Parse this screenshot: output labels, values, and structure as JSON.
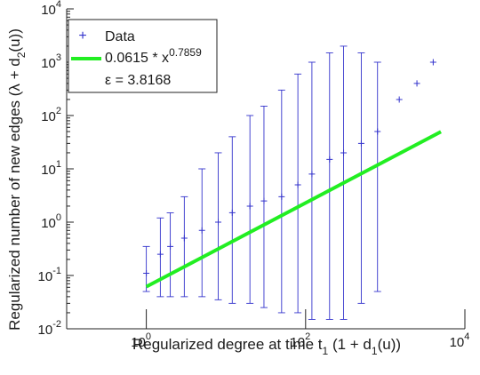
{
  "chart_data": {
    "type": "scatter",
    "xscale": "log",
    "yscale": "log",
    "xlim": [
      0.1,
      10000
    ],
    "ylim": [
      0.01,
      10000
    ],
    "x_ticks": [
      {
        "base": "10",
        "exp": "0"
      },
      {
        "base": "10",
        "exp": "2"
      },
      {
        "base": "10",
        "exp": "4"
      }
    ],
    "y_ticks": [
      {
        "base": "10",
        "exp": "-2"
      },
      {
        "base": "10",
        "exp": "-1"
      },
      {
        "base": "10",
        "exp": "0"
      },
      {
        "base": "10",
        "exp": "1"
      },
      {
        "base": "10",
        "exp": "2"
      },
      {
        "base": "10",
        "exp": "3"
      },
      {
        "base": "10",
        "exp": "4"
      }
    ],
    "xlabel": {
      "text": "Regularized degree at time t",
      "sub1": "1",
      "mid": " (1 + d",
      "sub2": "1",
      "end": "(u))"
    },
    "ylabel": {
      "text": "Regularized number of new edges (λ + d",
      "sub": "2",
      "end": "(u))"
    },
    "colors": {
      "data": "#3333cc",
      "fit": "#22ee22",
      "axis": "#222222"
    },
    "series": [
      {
        "name": "Data",
        "marker": "+",
        "description_points": [
          {
            "x": 1,
            "y": 0.11,
            "lo": 0.05,
            "hi": 0.35
          },
          {
            "x": 1.5,
            "y": 0.25,
            "lo": 0.04,
            "hi": 1.2
          },
          {
            "x": 2,
            "y": 0.35,
            "lo": 0.04,
            "hi": 1.5
          },
          {
            "x": 3,
            "y": 0.5,
            "lo": 0.04,
            "hi": 3
          },
          {
            "x": 5,
            "y": 0.7,
            "lo": 0.04,
            "hi": 10
          },
          {
            "x": 8,
            "y": 1,
            "lo": 0.035,
            "hi": 20
          },
          {
            "x": 12,
            "y": 1.5,
            "lo": 0.03,
            "hi": 40
          },
          {
            "x": 20,
            "y": 2,
            "lo": 0.03,
            "hi": 100
          },
          {
            "x": 30,
            "y": 2.5,
            "lo": 0.025,
            "hi": 150
          },
          {
            "x": 50,
            "y": 3,
            "lo": 0.02,
            "hi": 300
          },
          {
            "x": 80,
            "y": 5,
            "lo": 0.02,
            "hi": 600
          },
          {
            "x": 120,
            "y": 8,
            "lo": 0.015,
            "hi": 1000
          },
          {
            "x": 200,
            "y": 15,
            "lo": 0.015,
            "hi": 1500
          },
          {
            "x": 300,
            "y": 20,
            "lo": 0.015,
            "hi": 2000
          },
          {
            "x": 500,
            "y": 30,
            "lo": 0.03,
            "hi": 1500
          },
          {
            "x": 800,
            "y": 50,
            "lo": 0.05,
            "hi": 1000
          },
          {
            "x": 1500,
            "y": 200,
            "lo": null,
            "hi": null
          },
          {
            "x": 2500,
            "y": 400,
            "lo": null,
            "hi": null
          },
          {
            "x": 4000,
            "y": 1000,
            "lo": null,
            "hi": null
          }
        ]
      },
      {
        "name": "0.0615 * x^0.7859",
        "coef": 0.0615,
        "exponent": 0.7859,
        "x_range": [
          1,
          5000
        ]
      }
    ],
    "legend": {
      "position": "top-left",
      "entries": [
        {
          "label": "Data"
        },
        {
          "label": "0.0615 * x",
          "sup": "0.7859"
        },
        {
          "label": "ε = 3.8168"
        }
      ]
    }
  }
}
